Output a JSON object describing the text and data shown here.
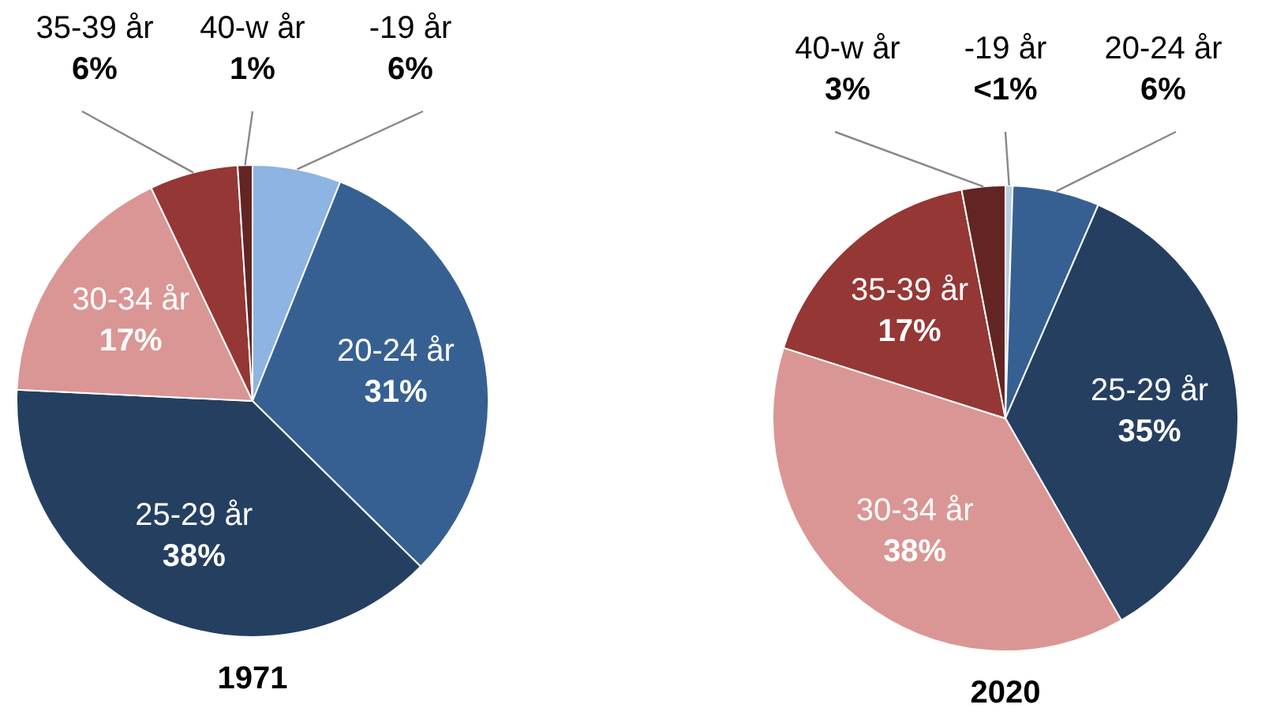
{
  "chart_data": [
    {
      "type": "pie",
      "title": "1971",
      "categories": [
        "-19 år",
        "20-24 år",
        "25-29 år",
        "30-34 år",
        "35-39 år",
        "40-w år"
      ],
      "values": [
        6,
        31,
        38,
        17,
        6,
        1
      ],
      "value_labels": [
        "6%",
        "31%",
        "38%",
        "17%",
        "6%",
        "1%"
      ],
      "colors": [
        "#8db4e2",
        "#376092",
        "#253f60",
        "#da9694",
        "#953735",
        "#632523"
      ]
    },
    {
      "type": "pie",
      "title": "2020",
      "categories": [
        "-19 år",
        "20-24 år",
        "25-29 år",
        "30-34 år",
        "35-39 år",
        "40-w år"
      ],
      "values": [
        0.5,
        6,
        35,
        38,
        17,
        3
      ],
      "value_labels": [
        "<1%",
        "6%",
        "35%",
        "38%",
        "17%",
        "3%"
      ],
      "colors": [
        "#b9cde5",
        "#376092",
        "#253f60",
        "#da9694",
        "#953735",
        "#632523"
      ]
    }
  ]
}
